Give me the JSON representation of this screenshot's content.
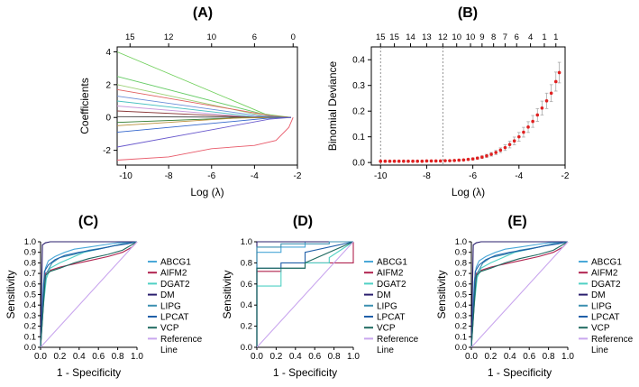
{
  "figure": {
    "panel_labels": [
      "(A)",
      "(B)",
      "(C)",
      "(D)",
      "(E)"
    ],
    "roc_legend": {
      "entries": [
        {
          "name": "ABCG1",
          "color": "#4aa8d8"
        },
        {
          "name": "AIFM2",
          "color": "#b0234f"
        },
        {
          "name": "DGAT2",
          "color": "#4fd0c4"
        },
        {
          "name": "DM",
          "color": "#2a1f6e"
        },
        {
          "name": "LIPG",
          "color": "#3b8fb0"
        },
        {
          "name": "LPCAT",
          "color": "#1f5fa8"
        },
        {
          "name": "VCP",
          "color": "#1f6a60"
        }
      ],
      "reference": {
        "name_line1": "Reference",
        "name_line2": "Line",
        "color": "#c9a6ee"
      }
    }
  },
  "chart_data": [
    {
      "panel": "A",
      "type": "line",
      "title": "",
      "xlabel": "Log (λ)",
      "ylabel": "Coefficients",
      "xlim": [
        -10.4,
        -2.0
      ],
      "ylim": [
        -2.9,
        4.3
      ],
      "xticks": [
        -10,
        -8,
        -6,
        -4,
        -2
      ],
      "yticks": [
        -2,
        0,
        2,
        4
      ],
      "top_axis": {
        "labels": [
          "15",
          "12",
          "10",
          "6",
          "0"
        ],
        "x": [
          -9.8,
          -8.0,
          -6.0,
          -4.0,
          -2.2
        ]
      },
      "series": [
        {
          "color": "#6fcf5a",
          "x": [
            -10.4,
            -3.5,
            -2.3
          ],
          "y": [
            4.0,
            0.2,
            0.0
          ]
        },
        {
          "color": "#66cc66",
          "x": [
            -10.4,
            -3.3,
            -2.3
          ],
          "y": [
            2.5,
            0.1,
            0.0
          ]
        },
        {
          "color": "#9fd37a",
          "x": [
            -10.4,
            -3.6,
            -2.3
          ],
          "y": [
            2.0,
            0.1,
            0.0
          ]
        },
        {
          "color": "#e06060",
          "x": [
            -10.4,
            -3.2,
            -2.3
          ],
          "y": [
            1.7,
            0.1,
            0.0
          ]
        },
        {
          "color": "#6a8ed8",
          "x": [
            -10.4,
            -3.8,
            -2.3
          ],
          "y": [
            1.3,
            0.1,
            0.0
          ]
        },
        {
          "color": "#4bc1c1",
          "x": [
            -10.4,
            -4.0,
            -2.3
          ],
          "y": [
            1.0,
            0.05,
            0.0
          ]
        },
        {
          "color": "#c99adb",
          "x": [
            -10.4,
            -4.4,
            -2.3
          ],
          "y": [
            0.7,
            0.05,
            0.0
          ]
        },
        {
          "color": "#8b3a3a",
          "x": [
            -10.4,
            -4.2,
            -2.3
          ],
          "y": [
            0.4,
            0.02,
            0.0
          ]
        },
        {
          "color": "#444444",
          "x": [
            -10.4,
            -2.3
          ],
          "y": [
            0.05,
            0.0
          ]
        },
        {
          "color": "#2d7a2d",
          "x": [
            -10.4,
            -4.6,
            -2.3
          ],
          "y": [
            -0.3,
            -0.02,
            0.0
          ]
        },
        {
          "color": "#b88f3a",
          "x": [
            -10.4,
            -4.8,
            -2.3
          ],
          "y": [
            -0.5,
            -0.03,
            0.0
          ]
        },
        {
          "color": "#3366cc",
          "x": [
            -10.4,
            -3.4,
            -2.3
          ],
          "y": [
            -0.9,
            -0.05,
            0.0
          ]
        },
        {
          "color": "#6a5acd",
          "x": [
            -10.4,
            -3.3,
            -2.3
          ],
          "y": [
            -1.8,
            -0.1,
            0.0
          ]
        },
        {
          "color": "#e85a6a",
          "x": [
            -10.4,
            -8.0,
            -6.0,
            -4.0,
            -3.0,
            -2.4,
            -2.2
          ],
          "y": [
            -2.6,
            -2.4,
            -1.9,
            -1.7,
            -1.4,
            -0.6,
            0.0
          ]
        }
      ]
    },
    {
      "panel": "B",
      "type": "scatter",
      "title": "",
      "xlabel": "Log (λ)",
      "ylabel": "Binomial Deviance",
      "xlim": [
        -10.4,
        -2.0
      ],
      "ylim": [
        -0.01,
        0.45
      ],
      "xticks": [
        -10,
        -8,
        -6,
        -4,
        -2
      ],
      "yticks": [
        0.0,
        0.1,
        0.2,
        0.3,
        0.4
      ],
      "top_axis": {
        "labels": [
          "15",
          "15",
          "14",
          "13",
          "12",
          "10",
          "10",
          "9",
          "8",
          "7",
          "6",
          "4",
          "1",
          "1"
        ],
        "x": [
          -10.0,
          -9.4,
          -8.7,
          -8.0,
          -7.3,
          -6.7,
          -6.1,
          -5.6,
          -5.1,
          -4.6,
          -4.1,
          -3.5,
          -2.9,
          -2.4
        ]
      },
      "vlines": [
        -10.0,
        -7.3
      ],
      "points": {
        "x": [
          -10.0,
          -9.8,
          -9.6,
          -9.4,
          -9.2,
          -9.0,
          -8.8,
          -8.6,
          -8.4,
          -8.2,
          -8.0,
          -7.8,
          -7.6,
          -7.4,
          -7.2,
          -7.0,
          -6.8,
          -6.6,
          -6.4,
          -6.2,
          -6.0,
          -5.8,
          -5.6,
          -5.4,
          -5.2,
          -5.0,
          -4.8,
          -4.6,
          -4.4,
          -4.2,
          -4.0,
          -3.8,
          -3.6,
          -3.4,
          -3.2,
          -3.0,
          -2.8,
          -2.6,
          -2.4,
          -2.25
        ],
        "y": [
          0.005,
          0.005,
          0.005,
          0.005,
          0.005,
          0.005,
          0.005,
          0.005,
          0.005,
          0.005,
          0.006,
          0.006,
          0.006,
          0.006,
          0.007,
          0.007,
          0.008,
          0.009,
          0.01,
          0.012,
          0.014,
          0.017,
          0.021,
          0.026,
          0.032,
          0.039,
          0.048,
          0.058,
          0.07,
          0.084,
          0.1,
          0.118,
          0.138,
          0.16,
          0.185,
          0.212,
          0.24,
          0.27,
          0.315,
          0.35
        ],
        "err": [
          0.002,
          0.002,
          0.002,
          0.002,
          0.002,
          0.002,
          0.002,
          0.002,
          0.002,
          0.002,
          0.002,
          0.002,
          0.002,
          0.002,
          0.002,
          0.002,
          0.002,
          0.003,
          0.003,
          0.003,
          0.004,
          0.004,
          0.005,
          0.006,
          0.007,
          0.008,
          0.009,
          0.011,
          0.013,
          0.015,
          0.017,
          0.019,
          0.021,
          0.023,
          0.025,
          0.027,
          0.03,
          0.033,
          0.037,
          0.04
        ]
      }
    },
    {
      "panel": "C",
      "type": "line",
      "xlabel": "1 - Specificity",
      "ylabel": "Sensitivity",
      "xlim": [
        0,
        1.0
      ],
      "ylim": [
        0,
        1.0
      ],
      "xticks": [
        "0.0",
        "0.2",
        "0.4",
        "0.6",
        "0.8",
        "1.0"
      ],
      "yticks": [
        "0.0",
        "0.1",
        "0.2",
        "0.3",
        "0.4",
        "0.5",
        "0.6",
        "0.7",
        "0.8",
        "0.9",
        "1.0"
      ],
      "series": [
        {
          "name": "ABCG1",
          "x": [
            0,
            0.03,
            0.05,
            0.08,
            0.15,
            0.25,
            0.35,
            0.5,
            0.65,
            0.8,
            1.0
          ],
          "y": [
            0,
            0.6,
            0.75,
            0.82,
            0.86,
            0.9,
            0.93,
            0.95,
            0.97,
            0.99,
            1.0
          ]
        },
        {
          "name": "AIFM2",
          "x": [
            0,
            0.05,
            0.1,
            0.2,
            0.3,
            0.5,
            0.7,
            0.85,
            0.95,
            1.0
          ],
          "y": [
            0,
            0.7,
            0.73,
            0.76,
            0.78,
            0.82,
            0.86,
            0.9,
            0.95,
            1.0
          ]
        },
        {
          "name": "DGAT2",
          "x": [
            0,
            0.03,
            0.06,
            0.1,
            0.2,
            0.3,
            0.45,
            0.6,
            0.8,
            1.0
          ],
          "y": [
            0,
            0.4,
            0.65,
            0.75,
            0.8,
            0.84,
            0.9,
            0.93,
            0.97,
            1.0
          ]
        },
        {
          "name": "DM",
          "x": [
            0,
            0.02,
            0.05,
            0.1,
            0.3,
            0.6,
            1.0
          ],
          "y": [
            0,
            0.97,
            0.99,
            1.0,
            1.0,
            1.0,
            1.0
          ]
        },
        {
          "name": "LIPG",
          "x": [
            0,
            0.03,
            0.06,
            0.12,
            0.2,
            0.35,
            0.5,
            0.7,
            0.85,
            1.0
          ],
          "y": [
            0,
            0.5,
            0.7,
            0.8,
            0.85,
            0.88,
            0.92,
            0.95,
            0.98,
            1.0
          ]
        },
        {
          "name": "LPCAT",
          "x": [
            0,
            0.04,
            0.08,
            0.15,
            0.25,
            0.4,
            0.6,
            0.75,
            0.9,
            1.0
          ],
          "y": [
            0,
            0.72,
            0.78,
            0.83,
            0.87,
            0.9,
            0.93,
            0.96,
            0.98,
            1.0
          ]
        },
        {
          "name": "VCP",
          "x": [
            0,
            0.05,
            0.1,
            0.2,
            0.35,
            0.5,
            0.7,
            0.85,
            1.0
          ],
          "y": [
            0,
            0.68,
            0.72,
            0.75,
            0.8,
            0.84,
            0.88,
            0.92,
            1.0
          ]
        },
        {
          "name": "Reference Line",
          "x": [
            0,
            1.0
          ],
          "y": [
            0,
            1.0
          ]
        }
      ]
    },
    {
      "panel": "D",
      "type": "line",
      "xlabel": "1 - Specificity",
      "ylabel": "Sensitivity",
      "xlim": [
        0,
        1.0
      ],
      "ylim": [
        0,
        1.0
      ],
      "xticks": [
        "0.0",
        "0.2",
        "0.4",
        "0.6",
        "0.8",
        "1.0"
      ],
      "yticks": [
        "0.0",
        "0.2",
        "0.4",
        "0.6",
        "0.8",
        "1.0"
      ],
      "series": [
        {
          "name": "ABCG1",
          "x": [
            0,
            0,
            0.25,
            0.25,
            0.5,
            0.5,
            1.0
          ],
          "y": [
            0,
            0.9,
            0.9,
            0.95,
            0.95,
            1.0,
            1.0
          ]
        },
        {
          "name": "AIFM2",
          "x": [
            0,
            0,
            0.25,
            0.25,
            0.5,
            0.5,
            1.0,
            1.0
          ],
          "y": [
            0,
            0.72,
            0.72,
            0.75,
            0.75,
            0.8,
            0.8,
            1.0
          ]
        },
        {
          "name": "DGAT2",
          "x": [
            0,
            0,
            0.25,
            0.25,
            0.5,
            0.5,
            0.75,
            0.75,
            1.0
          ],
          "y": [
            0,
            0.58,
            0.58,
            0.75,
            0.75,
            0.8,
            0.8,
            0.85,
            1.0
          ]
        },
        {
          "name": "DM",
          "x": [
            0,
            0,
            1.0
          ],
          "y": [
            0,
            1.0,
            1.0
          ]
        },
        {
          "name": "LIPG",
          "x": [
            0,
            0,
            0.25,
            0.25,
            0.75,
            0.75,
            1.0
          ],
          "y": [
            0,
            0.95,
            0.95,
            0.98,
            0.98,
            1.0,
            1.0
          ]
        },
        {
          "name": "LPCAT",
          "x": [
            0,
            0,
            0.25,
            0.25,
            0.5,
            0.5,
            1.0
          ],
          "y": [
            0,
            0.75,
            0.75,
            0.8,
            0.8,
            0.9,
            1.0
          ]
        },
        {
          "name": "VCP",
          "x": [
            0,
            0,
            0.5,
            0.5,
            1.0
          ],
          "y": [
            0,
            0.75,
            0.75,
            0.8,
            1.0
          ]
        },
        {
          "name": "Reference Line",
          "x": [
            0,
            1.0
          ],
          "y": [
            0,
            1.0
          ]
        }
      ]
    },
    {
      "panel": "E",
      "type": "line",
      "xlabel": "1 - Specificity",
      "ylabel": "Sensitivity",
      "xlim": [
        0,
        1.0
      ],
      "ylim": [
        0,
        1.0
      ],
      "xticks": [
        "0.0",
        "0.2",
        "0.4",
        "0.6",
        "0.8",
        "1.0"
      ],
      "yticks": [
        "0.0",
        "0.1",
        "0.2",
        "0.3",
        "0.4",
        "0.5",
        "0.6",
        "0.7",
        "0.8",
        "0.9",
        "1.0"
      ],
      "series": [
        {
          "name": "ABCG1",
          "x": [
            0,
            0.03,
            0.05,
            0.08,
            0.15,
            0.25,
            0.35,
            0.5,
            0.65,
            0.8,
            1.0
          ],
          "y": [
            0,
            0.62,
            0.76,
            0.82,
            0.86,
            0.9,
            0.93,
            0.95,
            0.97,
            0.99,
            1.0
          ]
        },
        {
          "name": "AIFM2",
          "x": [
            0,
            0.05,
            0.1,
            0.2,
            0.3,
            0.5,
            0.7,
            0.85,
            0.95,
            1.0
          ],
          "y": [
            0,
            0.7,
            0.73,
            0.76,
            0.78,
            0.82,
            0.86,
            0.9,
            0.95,
            1.0
          ]
        },
        {
          "name": "DGAT2",
          "x": [
            0,
            0.03,
            0.06,
            0.1,
            0.2,
            0.3,
            0.45,
            0.6,
            0.8,
            1.0
          ],
          "y": [
            0,
            0.4,
            0.66,
            0.75,
            0.8,
            0.84,
            0.9,
            0.93,
            0.97,
            1.0
          ]
        },
        {
          "name": "DM",
          "x": [
            0,
            0.02,
            0.05,
            0.1,
            0.3,
            0.6,
            1.0
          ],
          "y": [
            0,
            0.97,
            0.99,
            1.0,
            1.0,
            1.0,
            1.0
          ]
        },
        {
          "name": "LIPG",
          "x": [
            0,
            0.03,
            0.06,
            0.12,
            0.2,
            0.35,
            0.5,
            0.7,
            0.85,
            1.0
          ],
          "y": [
            0,
            0.5,
            0.7,
            0.8,
            0.85,
            0.88,
            0.92,
            0.95,
            0.98,
            1.0
          ]
        },
        {
          "name": "LPCAT",
          "x": [
            0,
            0.04,
            0.08,
            0.15,
            0.25,
            0.4,
            0.6,
            0.75,
            0.9,
            1.0
          ],
          "y": [
            0,
            0.72,
            0.78,
            0.83,
            0.87,
            0.9,
            0.93,
            0.96,
            0.98,
            1.0
          ]
        },
        {
          "name": "VCP",
          "x": [
            0,
            0.05,
            0.1,
            0.2,
            0.35,
            0.5,
            0.7,
            0.85,
            1.0
          ],
          "y": [
            0,
            0.68,
            0.72,
            0.75,
            0.8,
            0.84,
            0.88,
            0.92,
            1.0
          ]
        },
        {
          "name": "Reference Line",
          "x": [
            0,
            1.0
          ],
          "y": [
            0,
            1.0
          ]
        }
      ]
    }
  ]
}
